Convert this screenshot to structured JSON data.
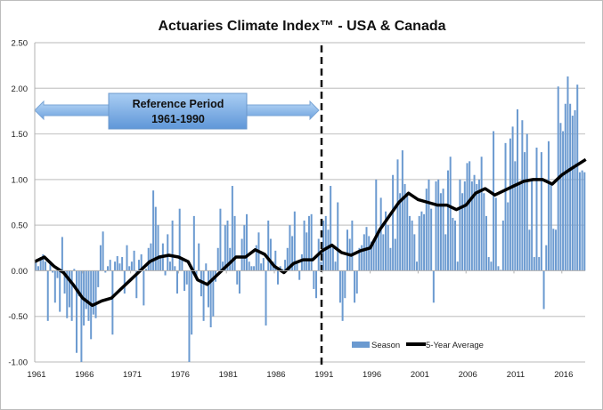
{
  "chart_data": {
    "type": "bar",
    "title": "Actuaries Climate Index™ - USA & Canada",
    "xlabel": "",
    "ylabel": "",
    "ylim": [
      -1.0,
      2.5
    ],
    "yticks": [
      "2.50",
      "2.00",
      "1.50",
      "1.00",
      "0.50",
      "0.00",
      "-0.50",
      "-1.00"
    ],
    "xticks": [
      "1961",
      "1966",
      "1971",
      "1976",
      "1981",
      "1986",
      "1991",
      "1996",
      "2001",
      "2006",
      "2011",
      "2016"
    ],
    "grid": true,
    "legend_position": "bottom-right",
    "colors": {
      "season": "#6b9ad0",
      "average": "#000000",
      "arrow": "#7fb0e6"
    },
    "annotation": {
      "line1": "Reference Period",
      "line2": "1961-1990",
      "divider_year": 1991
    },
    "series": [
      {
        "name": "Season",
        "type": "bar",
        "start_year": 1961,
        "values": [
          0.12,
          0.05,
          0.15,
          0.18,
          0.1,
          -0.55,
          0.08,
          -0.02,
          -0.35,
          -0.08,
          -0.45,
          0.37,
          -0.25,
          -0.52,
          -0.4,
          -0.55,
          0.02,
          -0.9,
          -0.28,
          -1.0,
          -0.6,
          -0.42,
          -0.55,
          -0.75,
          -0.48,
          -0.52,
          -0.18,
          0.28,
          0.43,
          -0.02,
          0.05,
          0.12,
          -0.7,
          0.1,
          0.16,
          0.08,
          0.15,
          -0.25,
          0.28,
          0.05,
          0.1,
          0.22,
          -0.3,
          0.12,
          0.18,
          -0.38,
          0.02,
          0.25,
          0.3,
          0.88,
          0.7,
          0.5,
          0.15,
          0.3,
          -0.05,
          0.4,
          0.1,
          0.55,
          0.05,
          -0.25,
          0.68,
          0.12,
          -0.22,
          -0.15,
          -1.0,
          -0.7,
          0.6,
          -0.1,
          0.3,
          -0.28,
          -0.55,
          0.08,
          -0.4,
          -0.62,
          -0.5,
          -0.12,
          0.25,
          0.68,
          0.1,
          0.5,
          0.55,
          0.25,
          0.93,
          0.6,
          -0.15,
          -0.25,
          0.35,
          0.5,
          0.62,
          0.1,
          0.05,
          0.05,
          0.28,
          0.42,
          0.08,
          0.14,
          -0.6,
          0.55,
          0.35,
          0.1,
          0.22,
          -0.15,
          0.05,
          0.02,
          0.12,
          0.25,
          0.5,
          0.38,
          0.65,
          0.1,
          -0.1,
          0.18,
          0.55,
          0.42,
          0.6,
          0.62,
          -0.2,
          -0.3,
          0.35,
          0.1,
          0.55,
          0.6,
          0.45,
          0.93,
          0.25,
          0.1,
          0.75,
          -0.35,
          -0.55,
          -0.3,
          0.45,
          0.35,
          0.55,
          -0.35,
          -0.25,
          0.25,
          0.28,
          0.4,
          0.48,
          0.38,
          0.32,
          0.35,
          1.0,
          0.4,
          0.8,
          0.4,
          0.65,
          0.5,
          0.25,
          1.05,
          0.35,
          1.22,
          0.85,
          1.32,
          0.95,
          0.85,
          0.6,
          0.55,
          0.4,
          0.1,
          0.6,
          0.65,
          0.62,
          0.9,
          1.0,
          0.68,
          -0.35,
          0.98,
          1.0,
          0.85,
          0.9,
          0.4,
          1.1,
          1.25,
          0.58,
          0.55,
          0.1,
          1.0,
          0.85,
          0.98,
          1.18,
          1.2,
          0.98,
          1.05,
          0.95,
          1.0,
          1.25,
          0.85,
          0.6,
          0.15,
          0.1,
          1.53,
          0.8,
          0.05,
          0.01,
          0.55,
          1.4,
          0.75,
          1.45,
          1.58,
          1.2,
          1.77,
          0.95,
          1.65,
          1.3,
          1.5,
          0.45,
          1.0,
          0.15,
          1.35,
          0.15,
          1.3,
          -0.42,
          0.28,
          1.42,
          0.95,
          0.46,
          0.45,
          2.02,
          1.62,
          1.53,
          1.83,
          2.13,
          1.83,
          1.7,
          1.76,
          2.04,
          1.08,
          1.1,
          1.08
        ]
      },
      {
        "name": "5-Year Average",
        "type": "line",
        "x": [
          1961,
          1962,
          1963,
          1964,
          1965,
          1966,
          1967,
          1968,
          1969,
          1970,
          1971,
          1972,
          1973,
          1974,
          1975,
          1976,
          1977,
          1978,
          1979,
          1980,
          1981,
          1982,
          1983,
          1984,
          1985,
          1986,
          1987,
          1988,
          1989,
          1990,
          1991,
          1992,
          1993,
          1994,
          1995,
          1996,
          1997,
          1998,
          1999,
          2000,
          2001,
          2002,
          2003,
          2004,
          2005,
          2006,
          2007,
          2008,
          2009,
          2010,
          2011,
          2012,
          2013,
          2014,
          2015,
          2016,
          2017,
          2018.5
        ],
        "values": [
          0.1,
          0.15,
          0.05,
          -0.02,
          -0.15,
          -0.3,
          -0.38,
          -0.33,
          -0.3,
          -0.2,
          -0.1,
          0.0,
          0.1,
          0.15,
          0.17,
          0.15,
          0.1,
          -0.1,
          -0.15,
          -0.05,
          0.05,
          0.15,
          0.15,
          0.23,
          0.18,
          0.05,
          -0.02,
          0.08,
          0.12,
          0.12,
          0.22,
          0.28,
          0.2,
          0.17,
          0.22,
          0.25,
          0.45,
          0.6,
          0.75,
          0.85,
          0.78,
          0.75,
          0.72,
          0.72,
          0.67,
          0.72,
          0.85,
          0.9,
          0.83,
          0.88,
          0.93,
          0.98,
          1.0,
          1.0,
          0.95,
          1.05,
          1.12,
          1.22
        ]
      }
    ]
  }
}
